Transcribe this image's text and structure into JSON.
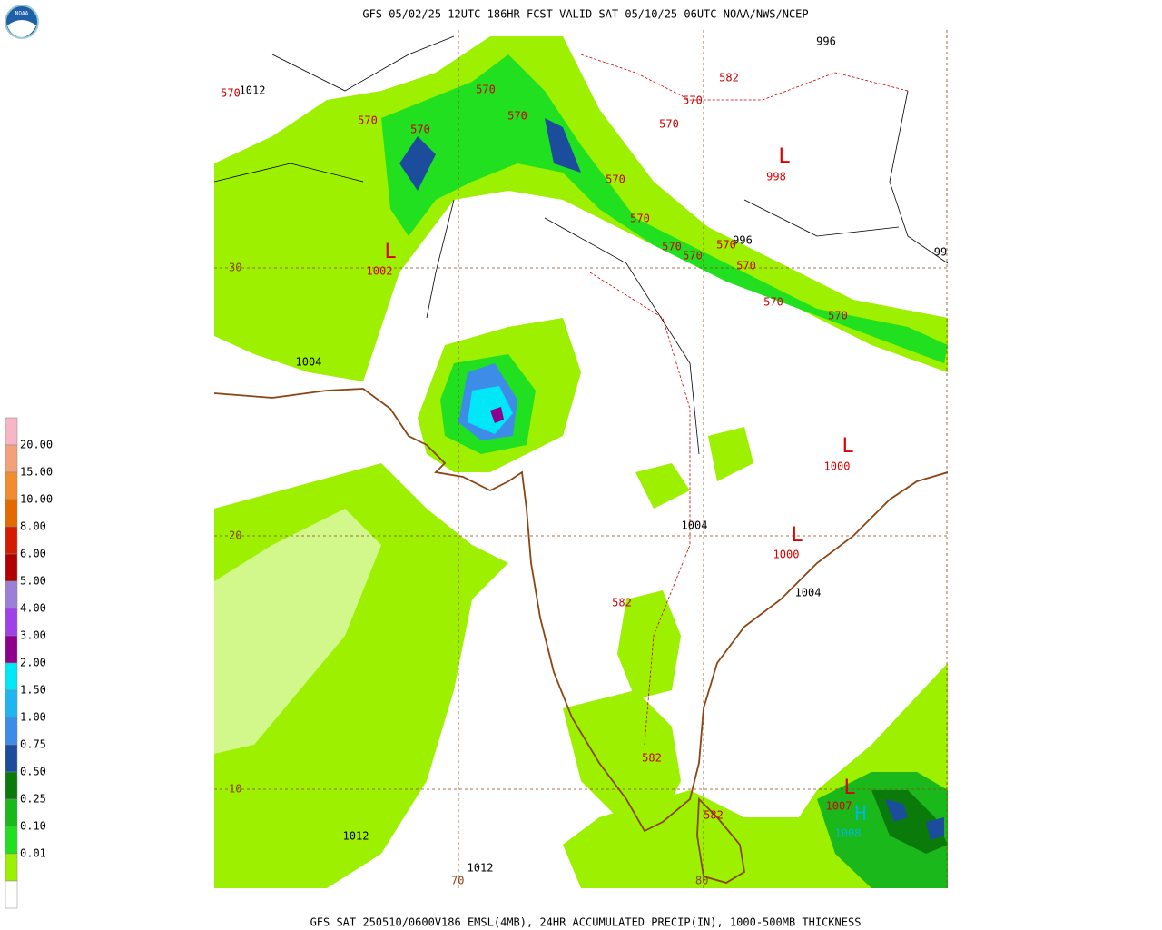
{
  "header": {
    "title": "GFS 05/02/25 12UTC 186HR FCST VALID SAT 05/10/25 06UTC NOAA/NWS/NCEP"
  },
  "footer": {
    "caption": "GFS SAT 250510/0600V186 EMSL(4MB), 24HR ACCUMULATED PRECIP(IN), 1000-500MB THICKNESS"
  },
  "legend": {
    "levels": [
      "20.00",
      "15.00",
      "10.00",
      "8.00",
      "6.00",
      "5.00",
      "4.00",
      "3.00",
      "2.00",
      "1.50",
      "1.00",
      "0.75",
      "0.50",
      "0.25",
      "0.10",
      "0.01"
    ],
    "colors": [
      "#f7b6c6",
      "#f4a07a",
      "#f28c2e",
      "#e46a00",
      "#d41c00",
      "#b00000",
      "#9b7fd8",
      "#a040e8",
      "#8c008c",
      "#00e8f8",
      "#20b4f0",
      "#3c8ce8",
      "#1c4c9c",
      "#0a7a0a",
      "#1ab81a",
      "#20e020",
      "#9cf000",
      "#ffffff"
    ]
  },
  "latitude_labels": [
    "30",
    "20",
    "10"
  ],
  "longitude_labels": [
    "70",
    "80"
  ],
  "pressure_labels": [
    "1012",
    "996",
    "996",
    "99",
    "1004",
    "1004",
    "1004",
    "1012",
    "1012"
  ],
  "thickness_labels": [
    "570",
    "570",
    "570",
    "570",
    "570",
    "570",
    "570",
    "570",
    "570",
    "570",
    "570",
    "570",
    "570",
    "570",
    "570",
    "582",
    "582",
    "582",
    "582"
  ],
  "low_centers": [
    {
      "symbol": "L",
      "pressure": "1002"
    },
    {
      "symbol": "L",
      "pressure": "998"
    },
    {
      "symbol": "L",
      "pressure": "1000"
    },
    {
      "symbol": "L",
      "pressure": "1000"
    },
    {
      "symbol": "L",
      "pressure": "1007"
    }
  ],
  "high_centers": [
    {
      "symbol": "H",
      "pressure": "1008"
    }
  ]
}
